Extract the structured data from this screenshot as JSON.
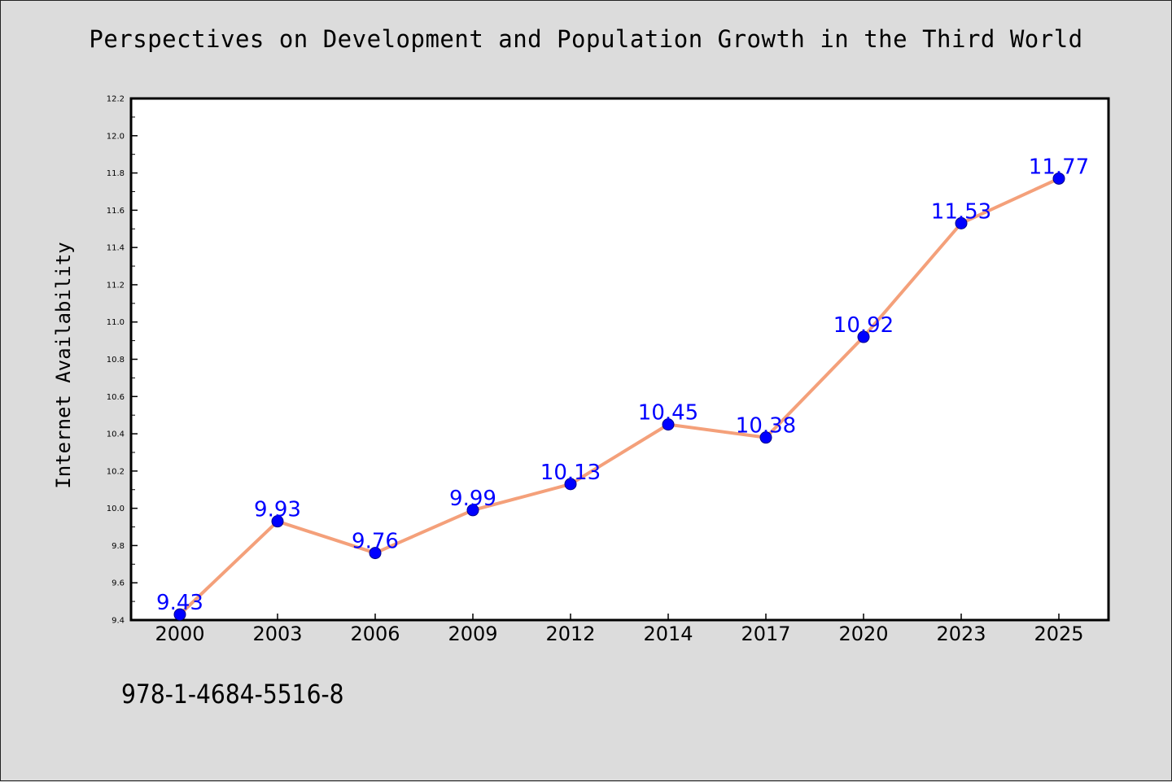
{
  "chart_data": {
    "type": "line",
    "title": "Perspectives on Development and Population Growth in the Third World",
    "xlabel": "",
    "ylabel": "Internet Availability",
    "categories": [
      "2000",
      "2003",
      "2006",
      "2009",
      "2012",
      "2014",
      "2017",
      "2020",
      "2023",
      "2025"
    ],
    "series": [
      {
        "values": [
          9.43,
          9.93,
          9.76,
          9.99,
          10.13,
          10.45,
          10.38,
          10.92,
          11.53,
          11.77
        ],
        "data_labels": [
          "9.43",
          "9.93",
          "9.76",
          "9.99",
          "10.13",
          "10.45",
          "10.38",
          "10.92",
          "11.53",
          "11.77"
        ]
      }
    ],
    "ylim": [
      9.4,
      12.2
    ],
    "yticks": [
      "9.4",
      "9.6",
      "9.8",
      "10.0",
      "10.2",
      "10.4",
      "10.6",
      "10.8",
      "11.0",
      "11.2",
      "11.4",
      "11.6",
      "11.8",
      "12.0",
      "12.2"
    ],
    "grid": false,
    "legend": "none",
    "colors": {
      "line": "#f4a07a",
      "marker": "#0000ff",
      "label": "#0000ff",
      "background": "#dcdcdc",
      "plot_area": "#ffffff"
    }
  },
  "footer": {
    "isbn": "978-1-4684-5516-8"
  }
}
